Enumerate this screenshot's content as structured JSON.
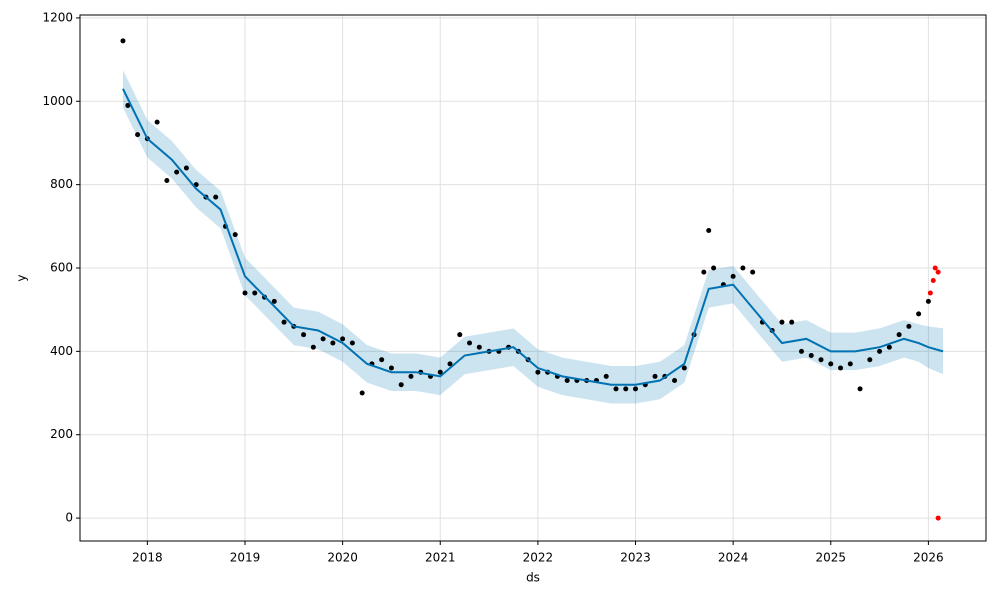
{
  "chart_data": {
    "type": "forecast",
    "xlabel": "ds",
    "ylabel": "y",
    "xlim": [
      2017.31,
      2026.59
    ],
    "ylim": [
      -55,
      1207
    ],
    "xticks": [
      2018,
      2019,
      2020,
      2021,
      2022,
      2023,
      2024,
      2025,
      2026
    ],
    "yticks": [
      0,
      200,
      400,
      600,
      800,
      1000,
      1200
    ],
    "grid": true,
    "points": {
      "color": "#000000",
      "x": [
        2017.75,
        2017.8,
        2017.9,
        2018.0,
        2018.1,
        2018.2,
        2018.3,
        2018.4,
        2018.5,
        2018.6,
        2018.7,
        2018.8,
        2018.9,
        2019.0,
        2019.1,
        2019.2,
        2019.3,
        2019.4,
        2019.5,
        2019.6,
        2019.7,
        2019.8,
        2019.9,
        2020.0,
        2020.1,
        2020.2,
        2020.3,
        2020.4,
        2020.5,
        2020.6,
        2020.7,
        2020.8,
        2020.9,
        2021.0,
        2021.1,
        2021.2,
        2021.3,
        2021.4,
        2021.5,
        2021.6,
        2021.7,
        2021.8,
        2021.9,
        2022.0,
        2022.1,
        2022.2,
        2022.3,
        2022.4,
        2022.5,
        2022.6,
        2022.7,
        2022.8,
        2022.9,
        2023.0,
        2023.1,
        2023.2,
        2023.3,
        2023.4,
        2023.5,
        2023.6,
        2023.7,
        2023.75,
        2023.8,
        2023.9,
        2024.0,
        2024.1,
        2024.2,
        2024.3,
        2024.4,
        2024.5,
        2024.6,
        2024.7,
        2024.8,
        2024.9,
        2025.0,
        2025.1,
        2025.2,
        2025.3,
        2025.4,
        2025.5,
        2025.6,
        2025.7,
        2025.8,
        2025.9,
        2026.0
      ],
      "y": [
        1145,
        990,
        920,
        910,
        950,
        810,
        830,
        840,
        800,
        770,
        770,
        700,
        680,
        540,
        540,
        530,
        520,
        470,
        460,
        440,
        410,
        430,
        420,
        430,
        420,
        300,
        370,
        380,
        360,
        320,
        340,
        350,
        340,
        350,
        370,
        440,
        420,
        410,
        400,
        400,
        410,
        400,
        380,
        350,
        350,
        340,
        330,
        330,
        330,
        330,
        340,
        310,
        310,
        310,
        320,
        340,
        340,
        330,
        360,
        440,
        590,
        690,
        600,
        560,
        580,
        600,
        590,
        470,
        450,
        470,
        470,
        400,
        390,
        380,
        370,
        360,
        370,
        310,
        380,
        400,
        410,
        440,
        460,
        490,
        520
      ]
    },
    "outliers": {
      "color": "#ff0000",
      "x": [
        2026.02,
        2026.05,
        2026.07,
        2026.1,
        2026.1
      ],
      "y": [
        540,
        570,
        600,
        590,
        0
      ]
    },
    "forecast": {
      "color": "#0072B2",
      "x": [
        2017.75,
        2018.0,
        2018.25,
        2018.5,
        2018.75,
        2019.0,
        2019.25,
        2019.5,
        2019.75,
        2020.0,
        2020.25,
        2020.5,
        2020.75,
        2021.0,
        2021.25,
        2021.5,
        2021.75,
        2022.0,
        2022.25,
        2022.5,
        2022.75,
        2023.0,
        2023.25,
        2023.5,
        2023.75,
        2024.0,
        2024.25,
        2024.5,
        2024.75,
        2025.0,
        2025.25,
        2025.5,
        2025.75,
        2025.9,
        2026.0,
        2026.15
      ],
      "yhat": [
        1030,
        910,
        860,
        790,
        740,
        580,
        520,
        460,
        450,
        420,
        370,
        350,
        350,
        340,
        390,
        400,
        410,
        360,
        340,
        330,
        320,
        320,
        330,
        370,
        550,
        560,
        490,
        420,
        430,
        400,
        400,
        410,
        430,
        420,
        410,
        400
      ],
      "yhat_lower": [
        985,
        865,
        815,
        745,
        695,
        535,
        475,
        415,
        405,
        375,
        325,
        305,
        305,
        295,
        345,
        355,
        365,
        315,
        295,
        285,
        275,
        275,
        285,
        325,
        505,
        515,
        445,
        375,
        385,
        355,
        355,
        365,
        385,
        375,
        360,
        345
      ],
      "yhat_upper": [
        1075,
        955,
        905,
        835,
        785,
        625,
        565,
        505,
        495,
        465,
        415,
        395,
        395,
        385,
        435,
        445,
        455,
        405,
        385,
        375,
        365,
        365,
        375,
        415,
        595,
        605,
        535,
        465,
        475,
        445,
        445,
        455,
        475,
        465,
        460,
        455
      ]
    }
  }
}
